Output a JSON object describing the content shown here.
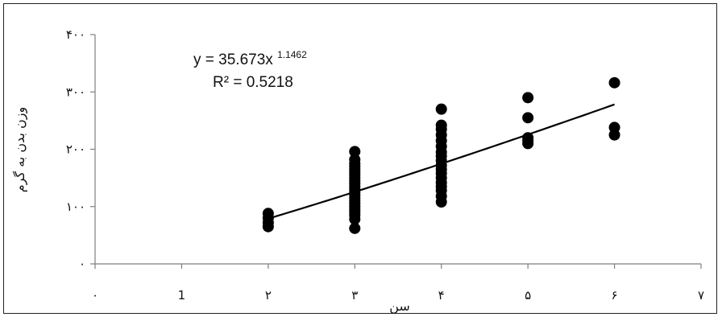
{
  "chart_data": {
    "type": "scatter",
    "xlabel": "سن",
    "ylabel": "وزن بدن به گرم",
    "xlim": [
      0,
      7
    ],
    "ylim": [
      0,
      400
    ],
    "x_ticks": [
      {
        "value": 0,
        "label": "۰"
      },
      {
        "value": 1,
        "label": "1"
      },
      {
        "value": 2,
        "label": "۲"
      },
      {
        "value": 3,
        "label": "۳"
      },
      {
        "value": 4,
        "label": "۴"
      },
      {
        "value": 5,
        "label": "۵"
      },
      {
        "value": 6,
        "label": "۶"
      },
      {
        "value": 7,
        "label": "۷"
      }
    ],
    "y_ticks": [
      {
        "value": 0,
        "label": "۰"
      },
      {
        "value": 100,
        "label": "۱۰۰"
      },
      {
        "value": 200,
        "label": "۲۰۰"
      },
      {
        "value": 300,
        "label": "۳۰۰"
      },
      {
        "value": 400,
        "label": "۴۰۰"
      }
    ],
    "points": [
      {
        "x": 2,
        "y": 65
      },
      {
        "x": 2,
        "y": 72
      },
      {
        "x": 2,
        "y": 80
      },
      {
        "x": 2,
        "y": 88
      },
      {
        "x": 3,
        "y": 62
      },
      {
        "x": 3,
        "y": 78
      },
      {
        "x": 3,
        "y": 85
      },
      {
        "x": 3,
        "y": 90
      },
      {
        "x": 3,
        "y": 95
      },
      {
        "x": 3,
        "y": 100
      },
      {
        "x": 3,
        "y": 105
      },
      {
        "x": 3,
        "y": 110
      },
      {
        "x": 3,
        "y": 115
      },
      {
        "x": 3,
        "y": 120
      },
      {
        "x": 3,
        "y": 125
      },
      {
        "x": 3,
        "y": 130
      },
      {
        "x": 3,
        "y": 135
      },
      {
        "x": 3,
        "y": 140
      },
      {
        "x": 3,
        "y": 145
      },
      {
        "x": 3,
        "y": 150
      },
      {
        "x": 3,
        "y": 155
      },
      {
        "x": 3,
        "y": 160
      },
      {
        "x": 3,
        "y": 165
      },
      {
        "x": 3,
        "y": 170
      },
      {
        "x": 3,
        "y": 175
      },
      {
        "x": 3,
        "y": 182
      },
      {
        "x": 3,
        "y": 196
      },
      {
        "x": 4,
        "y": 108
      },
      {
        "x": 4,
        "y": 118
      },
      {
        "x": 4,
        "y": 128
      },
      {
        "x": 4,
        "y": 135
      },
      {
        "x": 4,
        "y": 142
      },
      {
        "x": 4,
        "y": 150
      },
      {
        "x": 4,
        "y": 158
      },
      {
        "x": 4,
        "y": 165
      },
      {
        "x": 4,
        "y": 172
      },
      {
        "x": 4,
        "y": 180
      },
      {
        "x": 4,
        "y": 188
      },
      {
        "x": 4,
        "y": 195
      },
      {
        "x": 4,
        "y": 205
      },
      {
        "x": 4,
        "y": 215
      },
      {
        "x": 4,
        "y": 225
      },
      {
        "x": 4,
        "y": 235
      },
      {
        "x": 4,
        "y": 242
      },
      {
        "x": 4,
        "y": 270
      },
      {
        "x": 5,
        "y": 210
      },
      {
        "x": 5,
        "y": 215
      },
      {
        "x": 5,
        "y": 220
      },
      {
        "x": 5,
        "y": 255
      },
      {
        "x": 5,
        "y": 290
      },
      {
        "x": 6,
        "y": 225
      },
      {
        "x": 6,
        "y": 238
      },
      {
        "x": 6,
        "y": 316
      }
    ],
    "trendline": {
      "type": "power",
      "a": 35.673,
      "b": 1.1462,
      "x_start": 2,
      "x_end": 6
    },
    "annotation": {
      "equation_prefix": "y = 35.673x",
      "equation_exponent": "1.1462",
      "r_squared": "R² = 0.5218"
    },
    "grid": false,
    "legend": "none",
    "marker_color": "#000000"
  }
}
